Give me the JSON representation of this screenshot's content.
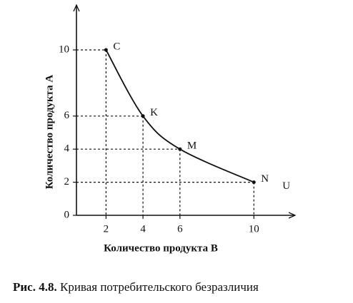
{
  "chart_data": {
    "type": "line",
    "figure_number": "Рис. 4.8.",
    "caption": "Кривая потребительского безразличия",
    "x_label": "Количество продукта В",
    "y_label": "Количество продукта А",
    "x": [
      2,
      4,
      6,
      10
    ],
    "series": [
      {
        "name": "U",
        "color": "#111111",
        "values": [
          10,
          6,
          4,
          2
        ],
        "point_labels": [
          "C",
          "K",
          "M",
          "N"
        ]
      }
    ],
    "xlim": [
      0.4,
      12
    ],
    "ylim": [
      0,
      12.5
    ],
    "xticks": [
      2,
      4,
      6,
      10
    ],
    "yticks": [
      0,
      2,
      4,
      6,
      10
    ]
  }
}
